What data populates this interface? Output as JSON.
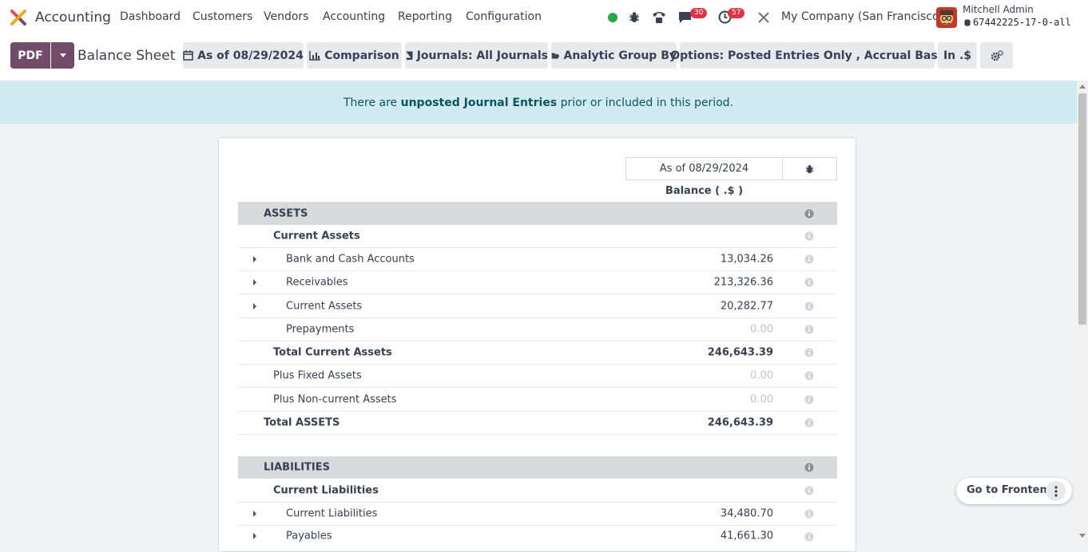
{
  "app": {
    "name": "Accounting"
  },
  "nav": {
    "items": [
      "Dashboard",
      "Customers",
      "Vendors",
      "Accounting",
      "Reporting",
      "Configuration"
    ]
  },
  "systray": {
    "messages_badge": "30",
    "activities_badge": "57",
    "company": "My Company (San Francisco)",
    "user_name": "Mitchell Admin",
    "db_name": "67442225-17-0-all"
  },
  "control": {
    "pdf_label": "PDF",
    "page_title": "Balance Sheet",
    "filters": {
      "date": "As of 08/29/2024",
      "comparison": "Comparison",
      "journals": "Journals: All Journals",
      "analytic": "Analytic Group By",
      "options": "Options: Posted Entries Only , Accrual Basis",
      "currency": "In .$"
    }
  },
  "alert": {
    "prefix": "There are ",
    "link": "unposted Journal Entries",
    "suffix": " prior or included in this period."
  },
  "report": {
    "column_header": "As of 08/29/2024",
    "column_subheader": "Balance ( .$ )",
    "rows": [
      {
        "label": "ASSETS",
        "amount": ""
      },
      {
        "label": "Current Assets",
        "amount": ""
      },
      {
        "label": "Bank and Cash Accounts",
        "amount": "13,034.26"
      },
      {
        "label": "Receivables",
        "amount": "213,326.36"
      },
      {
        "label": "Current Assets",
        "amount": "20,282.77"
      },
      {
        "label": "Prepayments",
        "amount": "0.00"
      },
      {
        "label": "Total Current Assets",
        "amount": "246,643.39"
      },
      {
        "label": "Plus Fixed Assets",
        "amount": "0.00"
      },
      {
        "label": "Plus Non-current Assets",
        "amount": "0.00"
      },
      {
        "label": "Total ASSETS",
        "amount": "246,643.39"
      },
      {
        "label": "LIABILITIES",
        "amount": ""
      },
      {
        "label": "Current Liabilities",
        "amount": ""
      },
      {
        "label": "Current Liabilities",
        "amount": "34,480.70"
      },
      {
        "label": "Payables",
        "amount": "41,661.30"
      }
    ]
  },
  "floating": {
    "go_to_frontend": "Go to Frontend"
  },
  "colors": {
    "brand": "#714b67",
    "alert_bg": "#d1ecf1",
    "section_bg": "#d8dadd"
  }
}
